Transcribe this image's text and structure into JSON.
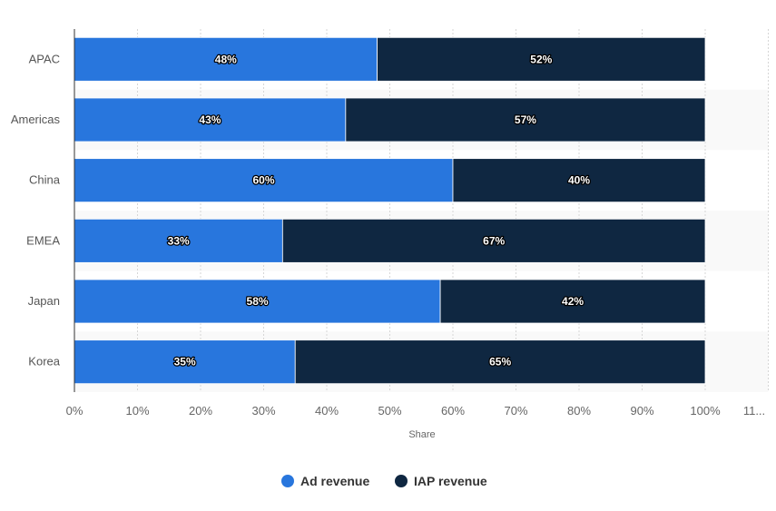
{
  "chart_data": {
    "type": "bar",
    "orientation": "horizontal",
    "stacked": true,
    "categories": [
      "APAC",
      "Americas",
      "China",
      "EMEA",
      "Japan",
      "Korea"
    ],
    "series": [
      {
        "name": "Ad revenue",
        "values": [
          48,
          43,
          60,
          33,
          58,
          35
        ],
        "color": "#2876dd"
      },
      {
        "name": "IAP revenue",
        "values": [
          52,
          57,
          40,
          67,
          42,
          65
        ],
        "color": "#0f2741"
      }
    ],
    "xlabel": "Share",
    "ylabel": "",
    "xlim": [
      0,
      110
    ],
    "xticks": [
      "0%",
      "10%",
      "20%",
      "30%",
      "40%",
      "50%",
      "60%",
      "70%",
      "80%",
      "90%",
      "100%",
      "11..."
    ],
    "data_label_suffix": "%",
    "grid": true,
    "legend": "bottom"
  }
}
